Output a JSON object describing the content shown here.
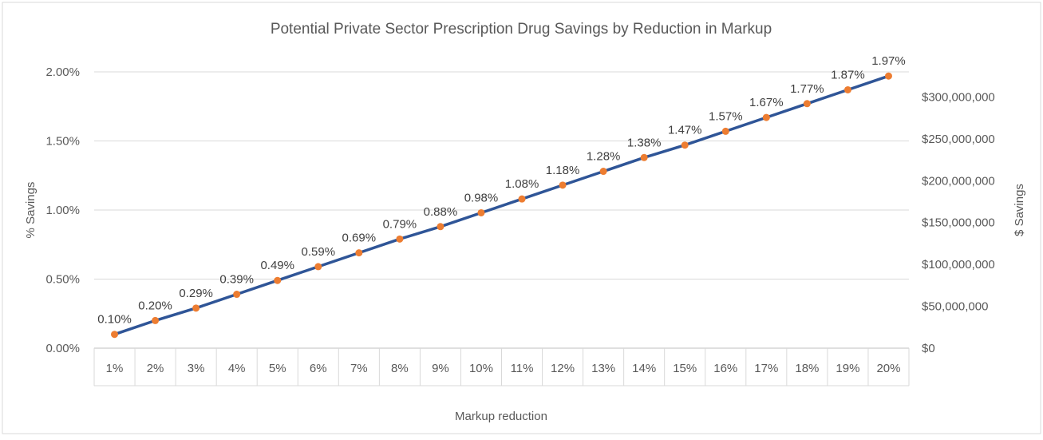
{
  "chart_data": {
    "type": "line",
    "title": "Potential Private Sector Prescription Drug Savings by Reduction in Markup",
    "xlabel": "Markup reduction",
    "ylabel": "% Savings",
    "y2label": "$ Savings",
    "categories": [
      "1%",
      "2%",
      "3%",
      "4%",
      "5%",
      "6%",
      "7%",
      "8%",
      "9%",
      "10%",
      "11%",
      "12%",
      "13%",
      "14%",
      "15%",
      "16%",
      "17%",
      "18%",
      "19%",
      "20%"
    ],
    "series": [
      {
        "values": [
          0.1,
          0.2,
          0.29,
          0.39,
          0.49,
          0.59,
          0.69,
          0.79,
          0.88,
          0.98,
          1.08,
          1.18,
          1.28,
          1.38,
          1.47,
          1.57,
          1.67,
          1.77,
          1.87,
          1.97
        ],
        "data_labels": [
          "0.10%",
          "0.20%",
          "0.29%",
          "0.39%",
          "0.49%",
          "0.59%",
          "0.69%",
          "0.79%",
          "0.88%",
          "0.98%",
          "1.08%",
          "1.18%",
          "1.28%",
          "1.38%",
          "1.47%",
          "1.57%",
          "1.67%",
          "1.77%",
          "1.87%",
          "1.97%"
        ],
        "line_color": "#2F5597",
        "marker_color": "#ED7D31"
      }
    ],
    "ylim": [
      0,
      2.0
    ],
    "y_ticks": [
      0,
      0.5,
      1.0,
      1.5,
      2.0
    ],
    "y_tick_labels": [
      "0.00%",
      "0.50%",
      "1.00%",
      "1.50%",
      "2.00%"
    ],
    "y2lim": [
      0,
      330000000
    ],
    "y2_ticks": [
      0,
      50000000,
      100000000,
      150000000,
      200000000,
      250000000,
      300000000
    ],
    "y2_tick_labels": [
      "$0",
      "$50,000,000",
      "$100,000,000",
      "$150,000,000",
      "$200,000,000",
      "$250,000,000",
      "$300,000,000"
    ],
    "grid": true,
    "legend": "none"
  }
}
